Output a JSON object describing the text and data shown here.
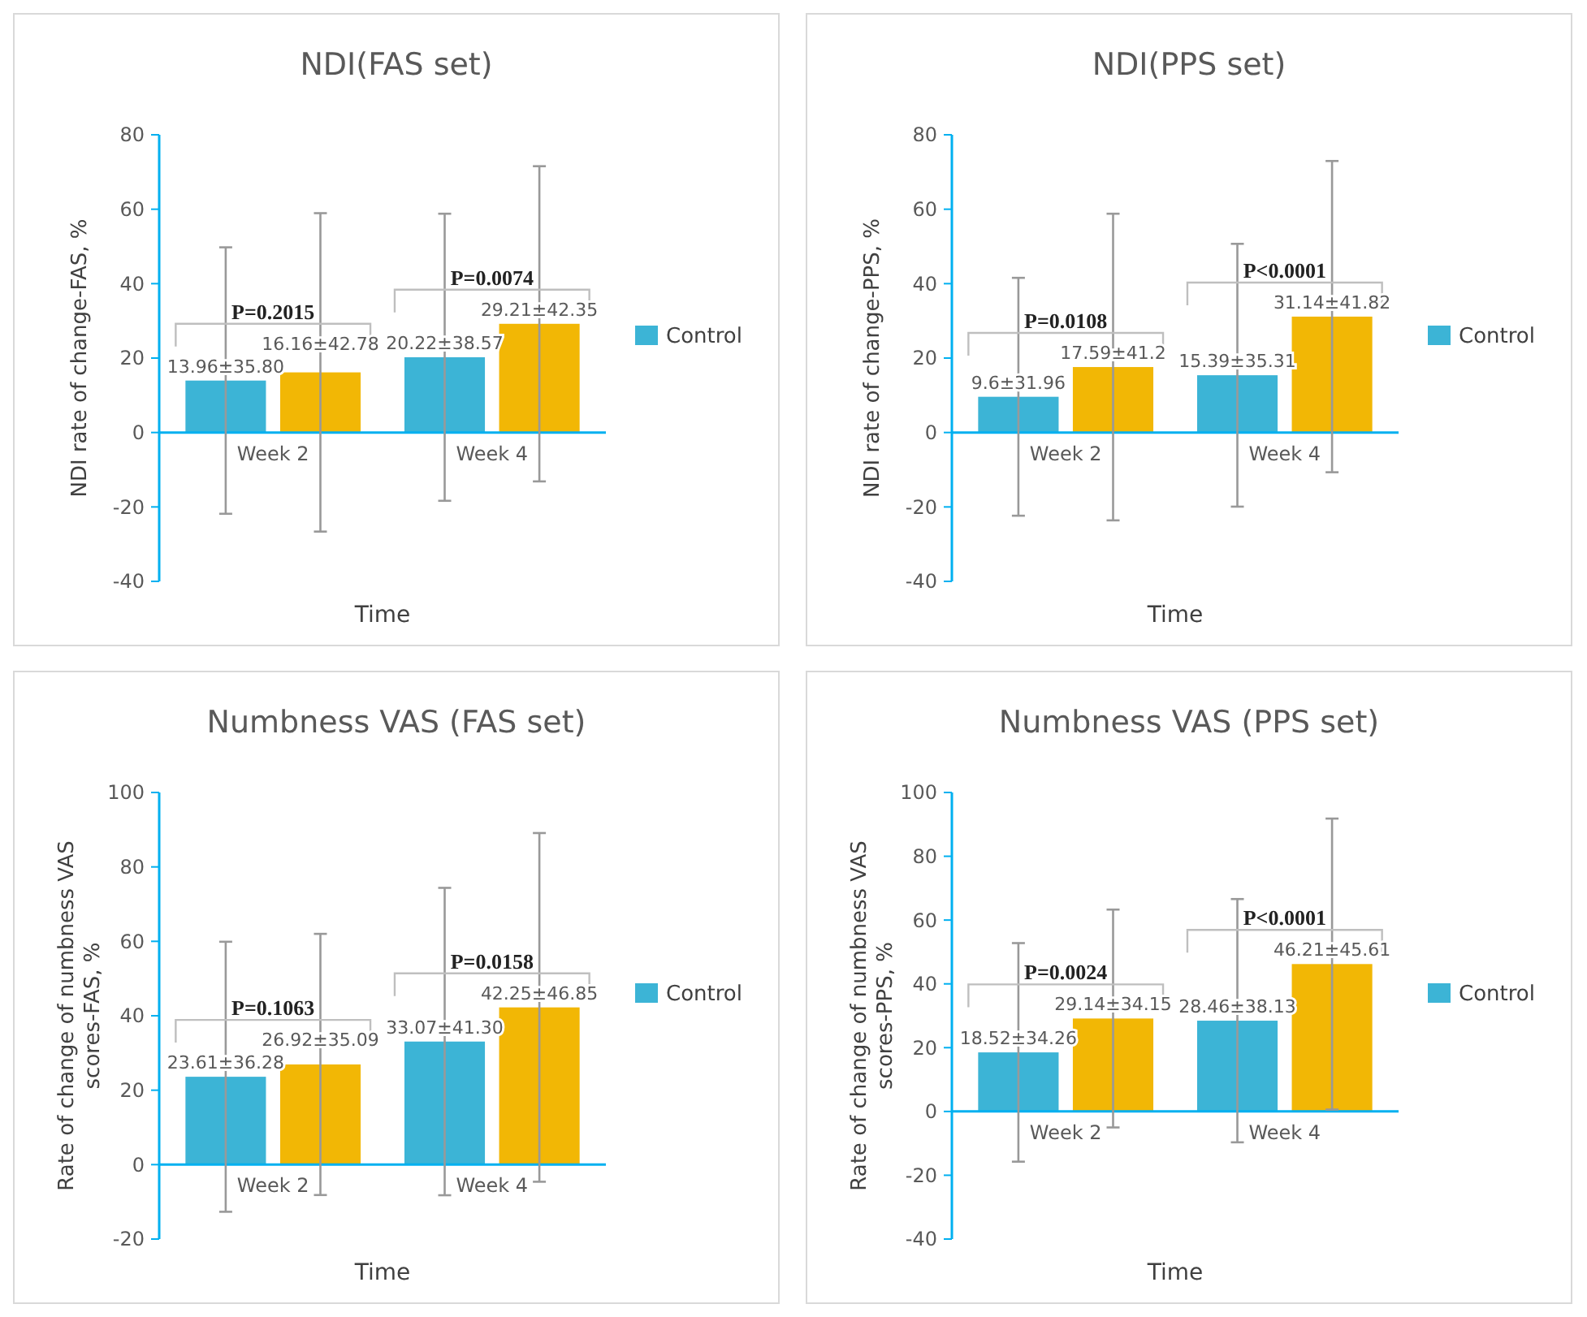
{
  "chart_data": [
    {
      "type": "bar",
      "title": "NDI(FAS set)",
      "xlabel": "Time",
      "ylabel": "NDI rate of change-FAS, %",
      "categories": [
        "Week 2",
        "Week 4"
      ],
      "ylim": [
        -40,
        80
      ],
      "yticks": [
        -40,
        -20,
        0,
        20,
        40,
        60,
        80
      ],
      "legend": "right",
      "grid": false,
      "series": [
        {
          "name": "Control",
          "color": "#3cb4d6",
          "values": [
            13.96,
            20.22
          ],
          "errors": [
            35.8,
            38.57
          ],
          "value_labels": [
            "13.96±35.80",
            "20.22±38.57"
          ]
        },
        {
          "color": "#f2b705",
          "values": [
            16.16,
            29.21
          ],
          "errors": [
            42.78,
            42.35
          ],
          "value_labels": [
            "16.16±42.78",
            "29.21±42.35"
          ]
        }
      ],
      "annotations": [
        "P=0.2015",
        "P=0.0074"
      ]
    },
    {
      "type": "bar",
      "title": "NDI(PPS set)",
      "xlabel": "Time",
      "ylabel": "NDI rate of change-PPS, %",
      "categories": [
        "Week 2",
        "Week 4"
      ],
      "ylim": [
        -40,
        80
      ],
      "yticks": [
        -40,
        -20,
        0,
        20,
        40,
        60,
        80
      ],
      "legend": "right",
      "grid": false,
      "series": [
        {
          "name": "Control",
          "color": "#3cb4d6",
          "values": [
            9.6,
            15.39
          ],
          "errors": [
            31.96,
            35.31
          ],
          "value_labels": [
            "9.6±31.96",
            "15.39±35.31"
          ]
        },
        {
          "color": "#f2b705",
          "values": [
            17.59,
            31.14
          ],
          "errors": [
            41.2,
            41.82
          ],
          "value_labels": [
            "17.59±41.2",
            "31.14±41.82"
          ]
        }
      ],
      "annotations": [
        "P=0.0108",
        "P<0.0001"
      ]
    },
    {
      "type": "bar",
      "title": "Numbness VAS (FAS set)",
      "xlabel": "Time",
      "ylabel": "Rate of change of numbness VAS scores-FAS, %",
      "categories": [
        "Week 2",
        "Week 4"
      ],
      "ylim": [
        -20,
        100
      ],
      "yticks": [
        -20,
        0,
        20,
        40,
        60,
        80,
        100
      ],
      "legend": "right",
      "grid": false,
      "series": [
        {
          "name": "Control",
          "color": "#3cb4d6",
          "values": [
            23.61,
            33.07
          ],
          "errors": [
            36.28,
            41.3
          ],
          "value_labels": [
            "23.61±36.28",
            "33.07±41.30"
          ]
        },
        {
          "color": "#f2b705",
          "values": [
            26.92,
            42.25
          ],
          "errors": [
            35.09,
            46.85
          ],
          "value_labels": [
            "26.92±35.09",
            "42.25±46.85"
          ]
        }
      ],
      "annotations": [
        "P=0.1063",
        "P=0.0158"
      ]
    },
    {
      "type": "bar",
      "title": "Numbness VAS (PPS set)",
      "xlabel": "Time",
      "ylabel": "Rate of change of numbness VAS scores-PPS, %",
      "categories": [
        "Week 2",
        "Week 4"
      ],
      "ylim": [
        -40,
        100
      ],
      "yticks": [
        -40,
        -20,
        0,
        20,
        40,
        60,
        80,
        100
      ],
      "legend": "right",
      "grid": false,
      "series": [
        {
          "name": "Control",
          "color": "#3cb4d6",
          "values": [
            18.52,
            28.46
          ],
          "errors": [
            34.26,
            38.13
          ],
          "value_labels": [
            "18.52±34.26",
            "28.46±38.13"
          ]
        },
        {
          "color": "#f2b705",
          "values": [
            29.14,
            46.21
          ],
          "errors": [
            34.15,
            45.61
          ],
          "value_labels": [
            "29.14±34.15",
            "46.21±45.61"
          ]
        }
      ],
      "annotations": [
        "P=0.0024",
        "P<0.0001"
      ]
    }
  ]
}
